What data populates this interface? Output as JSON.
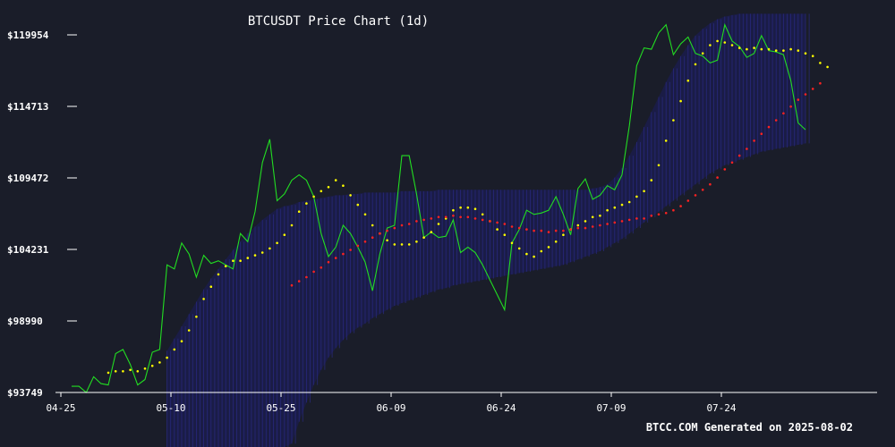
{
  "chart_data": {
    "type": "line",
    "title": "BTCUSDT Price Chart (1d)",
    "footer": "BTCC.COM Generated on 2025-08-02",
    "xlabel": "",
    "ylabel": "",
    "y_ticks": [
      "$93749",
      "$98990",
      "$104231",
      "$109472",
      "$114713",
      "$119954"
    ],
    "y_tick_values": [
      93749,
      98990,
      104231,
      109472,
      114713,
      119954
    ],
    "x_ticks": [
      "04-25",
      "05-10",
      "05-25",
      "06-09",
      "06-24",
      "07-09",
      "07-24"
    ],
    "x_tick_index": [
      0,
      15,
      30,
      45,
      60,
      75,
      90
    ],
    "ylim": [
      93749,
      119954
    ],
    "grid": false,
    "colors": {
      "background": "#1a1d29",
      "price": "#22dd22",
      "short_ma": "#ffff00",
      "long_ma": "#ff2222",
      "band_fill": "#1c1c5e",
      "band_line": "#2a2a88",
      "axis": "#ffffff"
    },
    "series": [
      {
        "key": "price",
        "style": "line",
        "values": [
          94200,
          94200,
          93750,
          94900,
          94400,
          94300,
          96600,
          96900,
          95800,
          94300,
          94700,
          96700,
          96900,
          103100,
          102800,
          104700,
          103900,
          102200,
          103800,
          103200,
          103400,
          103100,
          102800,
          105400,
          104800,
          107000,
          110600,
          112300,
          107800,
          108300,
          109300,
          109700,
          109300,
          108100,
          105400,
          103700,
          104400,
          106000,
          105400,
          104400,
          103300,
          101200,
          103900,
          105800,
          106000,
          111100,
          111100,
          108300,
          105100,
          105500,
          105100,
          105200,
          106400,
          104000,
          104400,
          104000,
          103100,
          102000,
          100900,
          99800,
          104700,
          105700,
          107100,
          106800,
          106900,
          107100,
          108100,
          106800,
          105300,
          108700,
          109400,
          107900,
          108200,
          108900,
          108600,
          109700,
          113300,
          117700,
          119000,
          118900,
          120100,
          120700,
          118500,
          119300,
          119800,
          118600,
          118400,
          117900,
          118100,
          120700,
          119500,
          119100,
          118300,
          118600,
          119900,
          118800,
          118700,
          118500,
          116600,
          113500,
          113000
        ]
      },
      {
        "key": "short_ma",
        "style": "dots",
        "start": 5,
        "values": [
          95200,
          95300,
          95300,
          95400,
          95300,
          95500,
          95700,
          95950,
          96300,
          96900,
          97500,
          98300,
          99300,
          100600,
          101500,
          102400,
          103000,
          103400,
          103400,
          103600,
          103800,
          104000,
          104300,
          104700,
          105300,
          106000,
          107000,
          107600,
          108100,
          108500,
          108800,
          109300,
          108900,
          108200,
          107500,
          106800,
          106000,
          105400,
          104900,
          104600,
          104600,
          104600,
          104800,
          105100,
          105500,
          106100,
          106500,
          107100,
          107300,
          107300,
          107200,
          106800,
          106300,
          105700,
          105300,
          104700,
          104300,
          103900,
          103700,
          104100,
          104400,
          104800,
          105300,
          105700,
          106000,
          106300,
          106600,
          106700,
          107100,
          107300,
          107500,
          107700,
          108100,
          108500,
          109300,
          110400,
          112200,
          113700,
          115100,
          116600,
          117800,
          118600,
          119200,
          119500,
          119400,
          119200,
          119000,
          118900,
          119000,
          118900,
          118900,
          118800,
          118800,
          118900,
          118800,
          118600,
          118400,
          117900,
          117600
        ]
      },
      {
        "key": "long_ma",
        "style": "dots",
        "start": 30,
        "values": [
          101600,
          101900,
          102200,
          102600,
          102900,
          103300,
          103600,
          103900,
          104200,
          104500,
          104800,
          105100,
          105400,
          105600,
          105800,
          106000,
          106100,
          106300,
          106400,
          106500,
          106600,
          106600,
          106700,
          106600,
          106600,
          106500,
          106400,
          106300,
          106200,
          106100,
          105900,
          105800,
          105700,
          105600,
          105600,
          105500,
          105600,
          105600,
          105700,
          105800,
          105800,
          105900,
          106000,
          106100,
          106200,
          106300,
          106400,
          106500,
          106500,
          106700,
          106800,
          106900,
          107100,
          107400,
          107800,
          108200,
          108600,
          109000,
          109500,
          110100,
          110600,
          111100,
          111600,
          112200,
          112700,
          113200,
          113700,
          114200,
          114700,
          115200,
          115600,
          116000,
          116400
        ]
      }
    ],
    "band": {
      "start": 13,
      "upper": [
        96800,
        97700,
        98600,
        99500,
        100400,
        101300,
        102100,
        102800,
        103500,
        104200,
        104800,
        105400,
        105900,
        106400,
        106800,
        107200,
        107400,
        107500,
        107700,
        107800,
        107900,
        108000,
        108100,
        108200,
        108200,
        108300,
        108300,
        108400,
        108400,
        108400,
        108400,
        108400,
        108500,
        108500,
        108500,
        108500,
        108500,
        108600,
        108600,
        108600,
        108600,
        108600,
        108600,
        108600,
        108600,
        108600,
        108600,
        108600,
        108600,
        108600,
        108600,
        108600,
        108600,
        108600,
        108600,
        108600,
        108600,
        108600,
        108700,
        108800,
        109000,
        109500,
        110200,
        111100,
        112100,
        113200,
        114300,
        115400,
        116500,
        117500,
        118400,
        119200,
        119900,
        120400,
        120800,
        121100,
        121300,
        121400,
        121500,
        121500,
        121500,
        121500,
        121500,
        121500,
        121500,
        121500,
        121500,
        121500
      ],
      "lower": [
        88000,
        88000,
        88000,
        88000,
        88000,
        88000,
        88000,
        88000,
        88000,
        88000,
        88000,
        88000,
        88000,
        88000,
        88000,
        88000,
        88000,
        90000,
        91600,
        93000,
        94300,
        95400,
        96300,
        97000,
        97600,
        98100,
        98500,
        98800,
        99200,
        99500,
        99800,
        100100,
        100300,
        100500,
        100700,
        100900,
        101100,
        101300,
        101400,
        101600,
        101700,
        101800,
        101900,
        102000,
        102100,
        102200,
        102300,
        102400,
        102500,
        102600,
        102700,
        102800,
        102900,
        103000,
        103100,
        103300,
        103500,
        103700,
        103900,
        104100,
        104400,
        104700,
        105000,
        105400,
        105800,
        106200,
        106600,
        107000,
        107400,
        107800,
        108200,
        108600,
        109000,
        109400,
        109800,
        110100,
        110400,
        110600,
        110800,
        111000,
        111200,
        111400,
        111500,
        111600,
        111700,
        111800,
        111900,
        112000
      ]
    }
  }
}
